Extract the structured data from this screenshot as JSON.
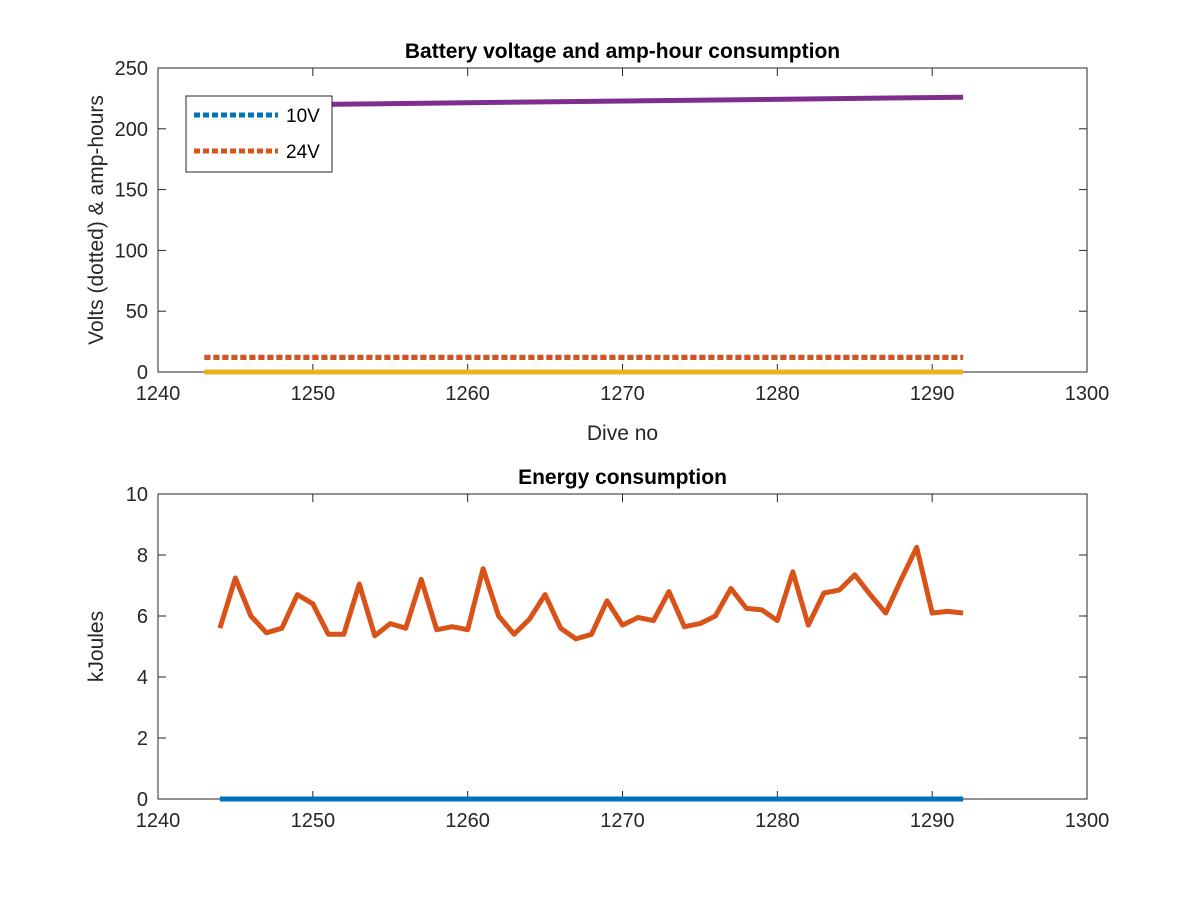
{
  "chart_data": [
    {
      "type": "line",
      "title": "Battery voltage and amp-hour consumption",
      "xlabel": "Dive no",
      "ylabel": "Volts (dotted) & amp-hours",
      "xlim": [
        1240,
        1300
      ],
      "ylim": [
        0,
        250
      ],
      "xticks": [
        1240,
        1250,
        1260,
        1270,
        1280,
        1290,
        1300
      ],
      "yticks": [
        0,
        50,
        100,
        150,
        200,
        250
      ],
      "grid": false,
      "legend_position": "top-left",
      "series": [
        {
          "name": "10V",
          "color": "#0072BD",
          "style": "dotted",
          "x": [
            1243,
            1292
          ],
          "y": [
            12,
            12
          ]
        },
        {
          "name": "24V",
          "color": "#D95319",
          "style": "dotted",
          "x": [
            1243,
            1292
          ],
          "y": [
            12,
            12
          ]
        },
        {
          "color": "#EDB120",
          "style": "solid",
          "x": [
            1243,
            1292
          ],
          "y": [
            0,
            0
          ]
        },
        {
          "color": "#7E2F8E",
          "style": "solid",
          "x": [
            1243,
            1292
          ],
          "y": [
            219,
            226
          ]
        }
      ]
    },
    {
      "type": "line",
      "title": "Energy consumption",
      "xlabel": "",
      "ylabel": "kJoules",
      "xlim": [
        1240,
        1300
      ],
      "ylim": [
        0,
        10
      ],
      "xticks": [
        1240,
        1250,
        1260,
        1270,
        1280,
        1290,
        1300
      ],
      "yticks": [
        0,
        2,
        4,
        6,
        8,
        10
      ],
      "grid": false,
      "series": [
        {
          "color": "#0072BD",
          "style": "solid",
          "x": [
            1244,
            1292
          ],
          "y": [
            0,
            0
          ]
        },
        {
          "color": "#D95319",
          "style": "solid",
          "x": [
            1244,
            1245,
            1246,
            1247,
            1248,
            1249,
            1250,
            1251,
            1252,
            1253,
            1254,
            1255,
            1256,
            1257,
            1258,
            1259,
            1260,
            1261,
            1262,
            1263,
            1264,
            1265,
            1266,
            1267,
            1268,
            1269,
            1270,
            1271,
            1272,
            1273,
            1274,
            1275,
            1276,
            1277,
            1278,
            1279,
            1280,
            1281,
            1282,
            1283,
            1284,
            1285,
            1286,
            1287,
            1288,
            1289,
            1290,
            1291,
            1292
          ],
          "y": [
            5.6,
            7.25,
            6.0,
            5.45,
            5.6,
            6.7,
            6.4,
            5.4,
            5.4,
            7.05,
            5.35,
            5.75,
            5.6,
            7.2,
            5.55,
            5.65,
            5.55,
            7.55,
            6.0,
            5.4,
            5.9,
            6.7,
            5.6,
            5.25,
            5.4,
            6.5,
            5.7,
            5.95,
            5.85,
            6.8,
            5.65,
            5.75,
            6.0,
            6.9,
            6.25,
            6.2,
            5.85,
            7.45,
            5.7,
            6.75,
            6.85,
            7.35,
            6.7,
            6.1,
            7.2,
            8.25,
            6.1,
            6.15,
            6.1
          ]
        }
      ]
    }
  ]
}
